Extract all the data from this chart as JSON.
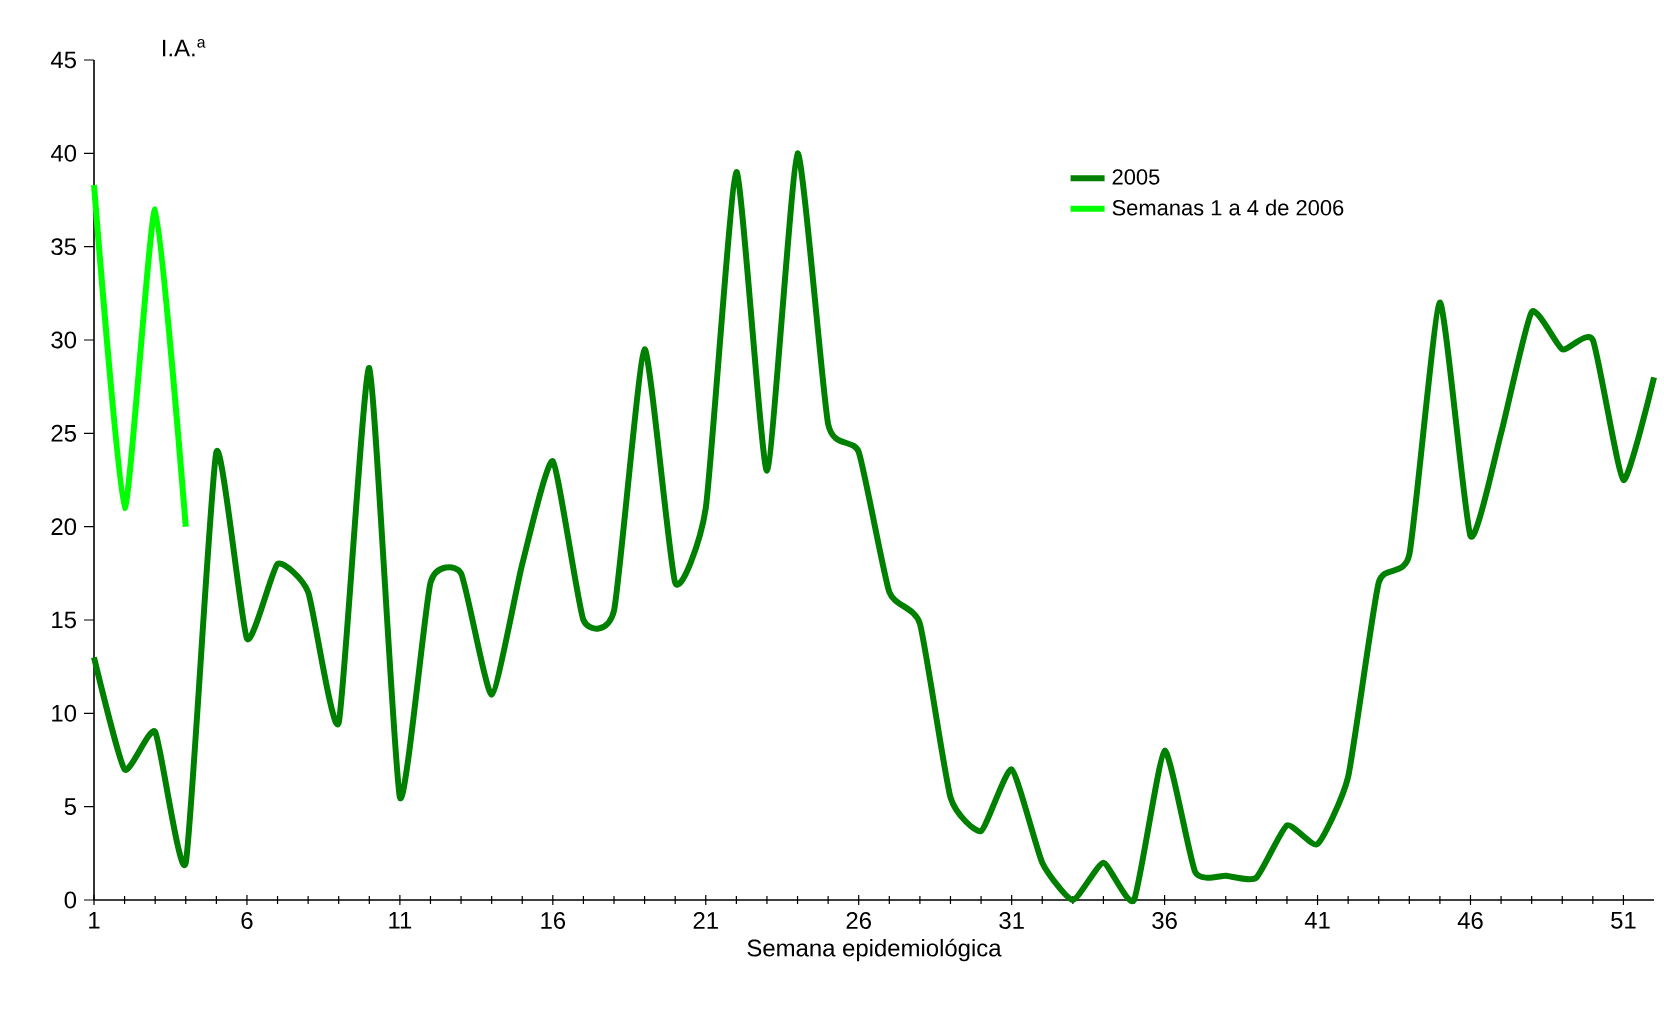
{
  "chart_data": {
    "type": "line",
    "ylabel": "I.A.$^{a}$",
    "xlabel": "Semana epidemiológica",
    "x": [
      1,
      2,
      3,
      4,
      5,
      6,
      7,
      8,
      9,
      10,
      11,
      12,
      13,
      14,
      15,
      16,
      17,
      18,
      19,
      20,
      21,
      22,
      23,
      24,
      25,
      26,
      27,
      28,
      29,
      30,
      31,
      32,
      33,
      34,
      35,
      36,
      37,
      38,
      39,
      40,
      41,
      42,
      43,
      44,
      45,
      46,
      47,
      48,
      49,
      50,
      51,
      52
    ],
    "series": [
      {
        "name": "2005",
        "color": "#008000",
        "values": [
          13,
          7,
          9,
          2,
          24,
          14,
          18,
          16.5,
          9.5,
          28.5,
          5.5,
          17,
          17.5,
          11,
          18,
          23.5,
          15,
          15.5,
          29.5,
          17,
          21,
          39,
          23,
          40,
          25.5,
          24,
          16.5,
          14.8,
          5.5,
          3.7,
          7,
          2,
          0,
          2,
          0,
          8,
          1.5,
          1.3,
          1.2,
          4,
          3,
          6.6,
          17,
          18.5,
          32,
          19.5,
          25,
          31.5,
          29.5,
          30,
          22.5,
          28
        ]
      },
      {
        "name": "Semanas 1 a 4 de 2006",
        "color": "#00ff00",
        "x": [
          1,
          2,
          3,
          4
        ],
        "values": [
          38.3,
          21,
          37,
          20
        ]
      }
    ],
    "xlim": [
      1,
      52
    ],
    "ylim": [
      0,
      45
    ],
    "xticks": [
      1,
      6,
      11,
      16,
      21,
      26,
      31,
      36,
      41,
      46,
      51
    ],
    "yticks": [
      0,
      5,
      10,
      15,
      20,
      25,
      30,
      35,
      40,
      45
    ],
    "grid": false,
    "legend": "top right",
    "marker": "none",
    "line_style": "solid"
  }
}
